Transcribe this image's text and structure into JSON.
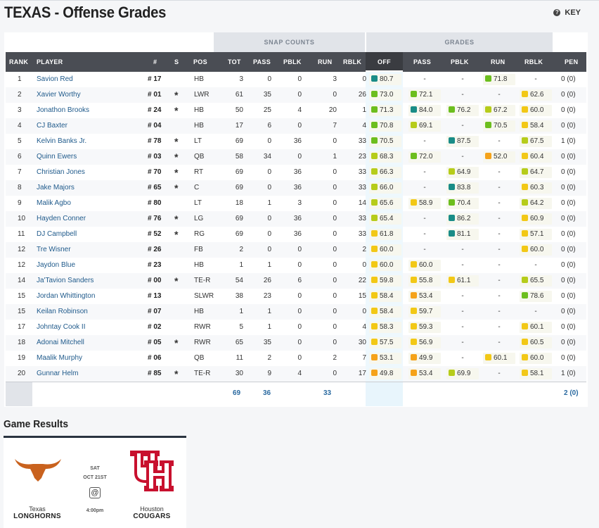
{
  "header": {
    "title": "TEXAS - Offense Grades",
    "key_label": "KEY"
  },
  "groups": {
    "snap": "SNAP COUNTS",
    "grades": "GRADES"
  },
  "columns": {
    "rank": "RANK",
    "player": "PLAYER",
    "num": "#",
    "s": "S",
    "pos": "POS",
    "tot": "TOT",
    "pass": "PASS",
    "pblk": "PBLK",
    "run": "RUN",
    "rblk": "RBLK",
    "off": "OFF",
    "g_pass": "PASS",
    "g_pblk": "PBLK",
    "g_run": "RUN",
    "g_rblk": "RBLK",
    "pen": "PEN"
  },
  "grade_colors": {
    "dark_green": "#1d8a54",
    "green": "#6cbe1e",
    "yellow_green": "#b6cc1a",
    "yellow": "#f2c816",
    "orange": "#f5a21a",
    "teal": "#198c87"
  },
  "players": [
    {
      "rank": "1",
      "name": "Savion Red",
      "num": "# 17",
      "star": "",
      "pos": "HB",
      "tot": "3",
      "pass": "0",
      "pblk": "0",
      "run": "3",
      "rblk": "0",
      "off": "80.7",
      "g_pass": "-",
      "g_pblk": "-",
      "g_run": "71.8",
      "g_rblk": "-",
      "pen": "0 (0)"
    },
    {
      "rank": "2",
      "name": "Xavier Worthy",
      "num": "# 01",
      "star": "*",
      "pos": "LWR",
      "tot": "61",
      "pass": "35",
      "pblk": "0",
      "run": "0",
      "rblk": "26",
      "off": "73.0",
      "g_pass": "72.1",
      "g_pblk": "-",
      "g_run": "-",
      "g_rblk": "62.6",
      "pen": "0 (0)"
    },
    {
      "rank": "3",
      "name": "Jonathon Brooks",
      "num": "# 24",
      "star": "*",
      "pos": "HB",
      "tot": "50",
      "pass": "25",
      "pblk": "4",
      "run": "20",
      "rblk": "1",
      "off": "71.3",
      "g_pass": "84.0",
      "g_pblk": "76.2",
      "g_run": "67.2",
      "g_rblk": "60.0",
      "pen": "0 (0)"
    },
    {
      "rank": "4",
      "name": "CJ Baxter",
      "num": "# 04",
      "star": "",
      "pos": "HB",
      "tot": "17",
      "pass": "6",
      "pblk": "0",
      "run": "7",
      "rblk": "4",
      "off": "70.8",
      "g_pass": "69.1",
      "g_pblk": "-",
      "g_run": "70.5",
      "g_rblk": "58.4",
      "pen": "0 (0)"
    },
    {
      "rank": "5",
      "name": "Kelvin Banks Jr.",
      "num": "# 78",
      "star": "*",
      "pos": "LT",
      "tot": "69",
      "pass": "0",
      "pblk": "36",
      "run": "0",
      "rblk": "33",
      "off": "70.5",
      "g_pass": "-",
      "g_pblk": "87.5",
      "g_run": "-",
      "g_rblk": "67.5",
      "pen": "1 (0)"
    },
    {
      "rank": "6",
      "name": "Quinn Ewers",
      "num": "# 03",
      "star": "*",
      "pos": "QB",
      "tot": "58",
      "pass": "34",
      "pblk": "0",
      "run": "1",
      "rblk": "23",
      "off": "68.3",
      "g_pass": "72.0",
      "g_pblk": "-",
      "g_run": "52.0",
      "g_rblk": "60.4",
      "pen": "0 (0)"
    },
    {
      "rank": "7",
      "name": "Christian Jones",
      "num": "# 70",
      "star": "*",
      "pos": "RT",
      "tot": "69",
      "pass": "0",
      "pblk": "36",
      "run": "0",
      "rblk": "33",
      "off": "66.3",
      "g_pass": "-",
      "g_pblk": "64.9",
      "g_run": "-",
      "g_rblk": "64.7",
      "pen": "0 (0)"
    },
    {
      "rank": "8",
      "name": "Jake Majors",
      "num": "# 65",
      "star": "*",
      "pos": "C",
      "tot": "69",
      "pass": "0",
      "pblk": "36",
      "run": "0",
      "rblk": "33",
      "off": "66.0",
      "g_pass": "-",
      "g_pblk": "83.8",
      "g_run": "-",
      "g_rblk": "60.3",
      "pen": "0 (0)"
    },
    {
      "rank": "9",
      "name": "Malik Agbo",
      "num": "# 80",
      "star": "",
      "pos": "LT",
      "tot": "18",
      "pass": "1",
      "pblk": "3",
      "run": "0",
      "rblk": "14",
      "off": "65.6",
      "g_pass": "58.9",
      "g_pblk": "70.4",
      "g_run": "-",
      "g_rblk": "64.2",
      "pen": "0 (0)"
    },
    {
      "rank": "10",
      "name": "Hayden Conner",
      "num": "# 76",
      "star": "*",
      "pos": "LG",
      "tot": "69",
      "pass": "0",
      "pblk": "36",
      "run": "0",
      "rblk": "33",
      "off": "65.4",
      "g_pass": "-",
      "g_pblk": "86.2",
      "g_run": "-",
      "g_rblk": "60.9",
      "pen": "0 (0)"
    },
    {
      "rank": "11",
      "name": "DJ Campbell",
      "num": "# 52",
      "star": "*",
      "pos": "RG",
      "tot": "69",
      "pass": "0",
      "pblk": "36",
      "run": "0",
      "rblk": "33",
      "off": "61.8",
      "g_pass": "-",
      "g_pblk": "81.1",
      "g_run": "-",
      "g_rblk": "57.1",
      "pen": "0 (0)"
    },
    {
      "rank": "12",
      "name": "Tre Wisner",
      "num": "# 26",
      "star": "",
      "pos": "FB",
      "tot": "2",
      "pass": "0",
      "pblk": "0",
      "run": "0",
      "rblk": "2",
      "off": "60.0",
      "g_pass": "-",
      "g_pblk": "-",
      "g_run": "-",
      "g_rblk": "60.0",
      "pen": "0 (0)"
    },
    {
      "rank": "12",
      "name": "Jaydon Blue",
      "num": "# 23",
      "star": "",
      "pos": "HB",
      "tot": "1",
      "pass": "1",
      "pblk": "0",
      "run": "0",
      "rblk": "0",
      "off": "60.0",
      "g_pass": "60.0",
      "g_pblk": "-",
      "g_run": "-",
      "g_rblk": "-",
      "pen": "0 (0)"
    },
    {
      "rank": "14",
      "name": "Ja'Tavion Sanders",
      "num": "# 00",
      "star": "*",
      "pos": "TE-R",
      "tot": "54",
      "pass": "26",
      "pblk": "6",
      "run": "0",
      "rblk": "22",
      "off": "59.8",
      "g_pass": "55.8",
      "g_pblk": "61.1",
      "g_run": "-",
      "g_rblk": "65.5",
      "pen": "0 (0)"
    },
    {
      "rank": "15",
      "name": "Jordan Whittington",
      "num": "# 13",
      "star": "",
      "pos": "SLWR",
      "tot": "38",
      "pass": "23",
      "pblk": "0",
      "run": "0",
      "rblk": "15",
      "off": "58.4",
      "g_pass": "53.4",
      "g_pblk": "-",
      "g_run": "-",
      "g_rblk": "78.6",
      "pen": "0 (0)"
    },
    {
      "rank": "15",
      "name": "Keilan Robinson",
      "num": "# 07",
      "star": "",
      "pos": "HB",
      "tot": "1",
      "pass": "1",
      "pblk": "0",
      "run": "0",
      "rblk": "0",
      "off": "58.4",
      "g_pass": "59.7",
      "g_pblk": "-",
      "g_run": "-",
      "g_rblk": "-",
      "pen": "0 (0)"
    },
    {
      "rank": "17",
      "name": "Johntay Cook II",
      "num": "# 02",
      "star": "",
      "pos": "RWR",
      "tot": "5",
      "pass": "1",
      "pblk": "0",
      "run": "0",
      "rblk": "4",
      "off": "58.3",
      "g_pass": "59.3",
      "g_pblk": "-",
      "g_run": "-",
      "g_rblk": "60.1",
      "pen": "0 (0)"
    },
    {
      "rank": "18",
      "name": "Adonai Mitchell",
      "num": "# 05",
      "star": "*",
      "pos": "RWR",
      "tot": "65",
      "pass": "35",
      "pblk": "0",
      "run": "0",
      "rblk": "30",
      "off": "57.5",
      "g_pass": "56.9",
      "g_pblk": "-",
      "g_run": "-",
      "g_rblk": "60.5",
      "pen": "0 (0)"
    },
    {
      "rank": "19",
      "name": "Maalik Murphy",
      "num": "# 06",
      "star": "",
      "pos": "QB",
      "tot": "11",
      "pass": "2",
      "pblk": "0",
      "run": "2",
      "rblk": "7",
      "off": "53.1",
      "g_pass": "49.9",
      "g_pblk": "-",
      "g_run": "60.1",
      "g_rblk": "60.0",
      "pen": "0 (0)"
    },
    {
      "rank": "20",
      "name": "Gunnar Helm",
      "num": "# 85",
      "star": "*",
      "pos": "TE-R",
      "tot": "30",
      "pass": "9",
      "pblk": "4",
      "run": "0",
      "rblk": "17",
      "off": "49.8",
      "g_pass": "53.4",
      "g_pblk": "69.9",
      "g_run": "-",
      "g_rblk": "58.1",
      "pen": "1 (0)"
    }
  ],
  "totals": {
    "tot": "69",
    "pass": "36",
    "run": "33",
    "pen": "2 (0)"
  },
  "game_results": {
    "title": "Game Results",
    "day": "SAT",
    "date": "OCT 21ST",
    "at_symbol": "@",
    "time": "4:00pm",
    "away": {
      "city": "Texas",
      "nick": "LONGHORNS",
      "color": "#c9621e"
    },
    "home": {
      "city": "Houston",
      "nick": "COUGARS",
      "color": "#c8102e",
      "logo": "UH"
    }
  }
}
